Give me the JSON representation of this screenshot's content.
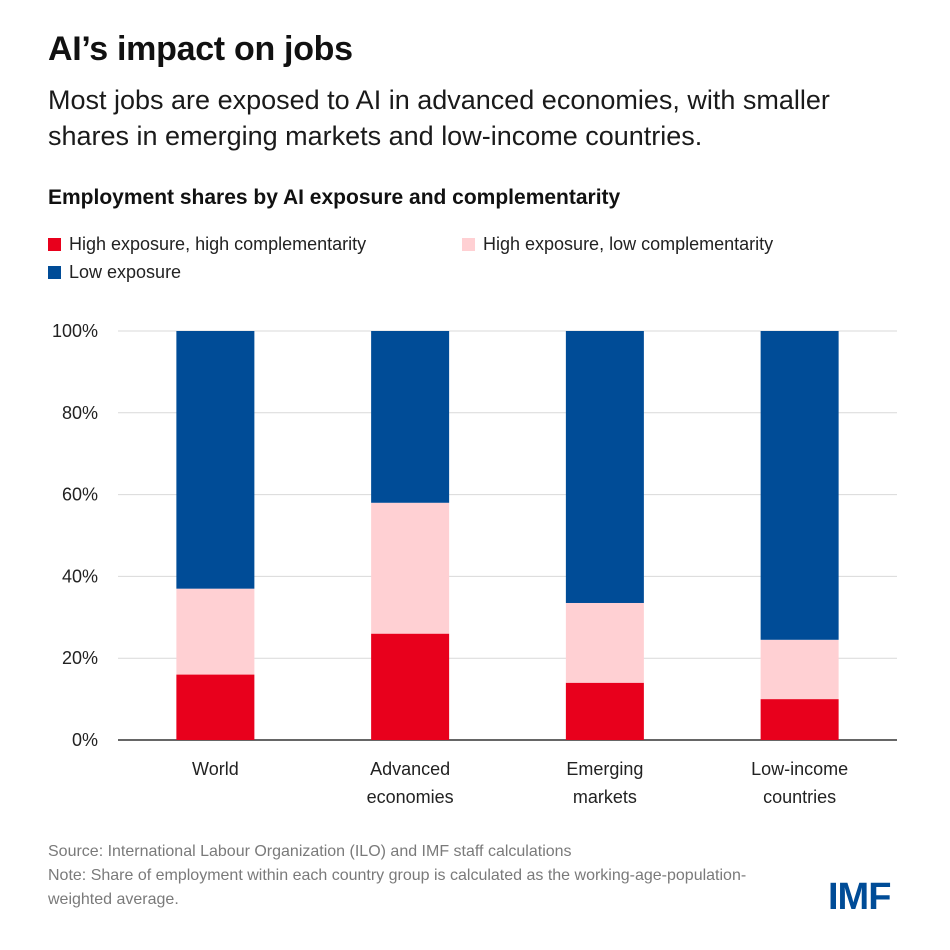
{
  "header": {
    "title": "AI’s impact on jobs",
    "subtitle": "Most jobs are exposed to AI in advanced economies, with smaller shares in emerging markets and low-income countries."
  },
  "chart_data": {
    "type": "bar",
    "stacked": true,
    "title": "Employment shares by AI exposure and complementarity",
    "xlabel": "",
    "ylabel": "",
    "ylim": [
      0,
      100
    ],
    "yticks": [
      "0%",
      "20%",
      "40%",
      "60%",
      "80%",
      "100%"
    ],
    "grid": true,
    "legend_position": "top-left",
    "categories": [
      [
        "World"
      ],
      [
        "Advanced",
        "economies"
      ],
      [
        "Emerging",
        "markets"
      ],
      [
        "Low-income",
        "countries"
      ]
    ],
    "series": [
      {
        "name": "High exposure, high complementarity",
        "color": "#e8001c",
        "values": [
          16,
          26,
          14,
          10
        ]
      },
      {
        "name": "High exposure, low complementarity",
        "color": "#ffd0d3",
        "values": [
          21,
          32,
          19.5,
          14.5
        ]
      },
      {
        "name": "Low exposure",
        "color": "#004c97",
        "values": [
          63,
          42,
          66.5,
          75.5
        ]
      }
    ]
  },
  "footer": {
    "source": "Source: International Labour Organization (ILO) and IMF staff calculations",
    "note": "Note: Share of employment within each country group is calculated as the working-age-population-weighted average."
  },
  "logo": {
    "text": "IMF",
    "color": "#004c97"
  }
}
